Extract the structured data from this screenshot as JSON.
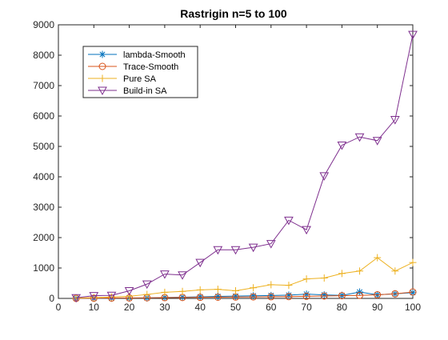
{
  "chart_data": {
    "type": "line",
    "title": "Rastrigin n=5 to 100",
    "xlabel": "",
    "ylabel": "",
    "xlim": [
      0,
      100
    ],
    "ylim": [
      0,
      9000
    ],
    "xticks": [
      0,
      10,
      20,
      30,
      40,
      50,
      60,
      70,
      80,
      90,
      100
    ],
    "yticks": [
      0,
      1000,
      2000,
      3000,
      4000,
      5000,
      6000,
      7000,
      8000,
      9000
    ],
    "x": [
      5,
      10,
      15,
      20,
      25,
      30,
      35,
      40,
      45,
      50,
      55,
      60,
      65,
      70,
      75,
      80,
      85,
      90,
      95,
      100
    ],
    "grid": false,
    "legend_position": "top-left",
    "series": [
      {
        "name": "lambda-Smooth",
        "color": "#0072BD",
        "marker": "asterisk",
        "values": [
          2,
          5,
          8,
          12,
          18,
          28,
          40,
          52,
          65,
          75,
          85,
          95,
          110,
          140,
          115,
          100,
          210,
          120,
          150,
          190
        ]
      },
      {
        "name": "Trace-Smooth",
        "color": "#D95319",
        "marker": "circle",
        "values": [
          3,
          8,
          12,
          15,
          20,
          25,
          30,
          35,
          40,
          45,
          50,
          55,
          60,
          70,
          80,
          90,
          100,
          120,
          150,
          210
        ]
      },
      {
        "name": "Pure SA",
        "color": "#EDB120",
        "marker": "plus",
        "values": [
          10,
          25,
          45,
          70,
          130,
          200,
          230,
          280,
          300,
          250,
          350,
          450,
          430,
          640,
          670,
          820,
          900,
          1340,
          900,
          1180
        ]
      },
      {
        "name": "Build-in SA",
        "color": "#7E2F8E",
        "marker": "triangle-down",
        "values": [
          20,
          90,
          100,
          250,
          470,
          800,
          770,
          1180,
          1600,
          1600,
          1680,
          1800,
          2570,
          2260,
          4030,
          5040,
          5310,
          5190,
          5880,
          8680
        ]
      }
    ]
  }
}
